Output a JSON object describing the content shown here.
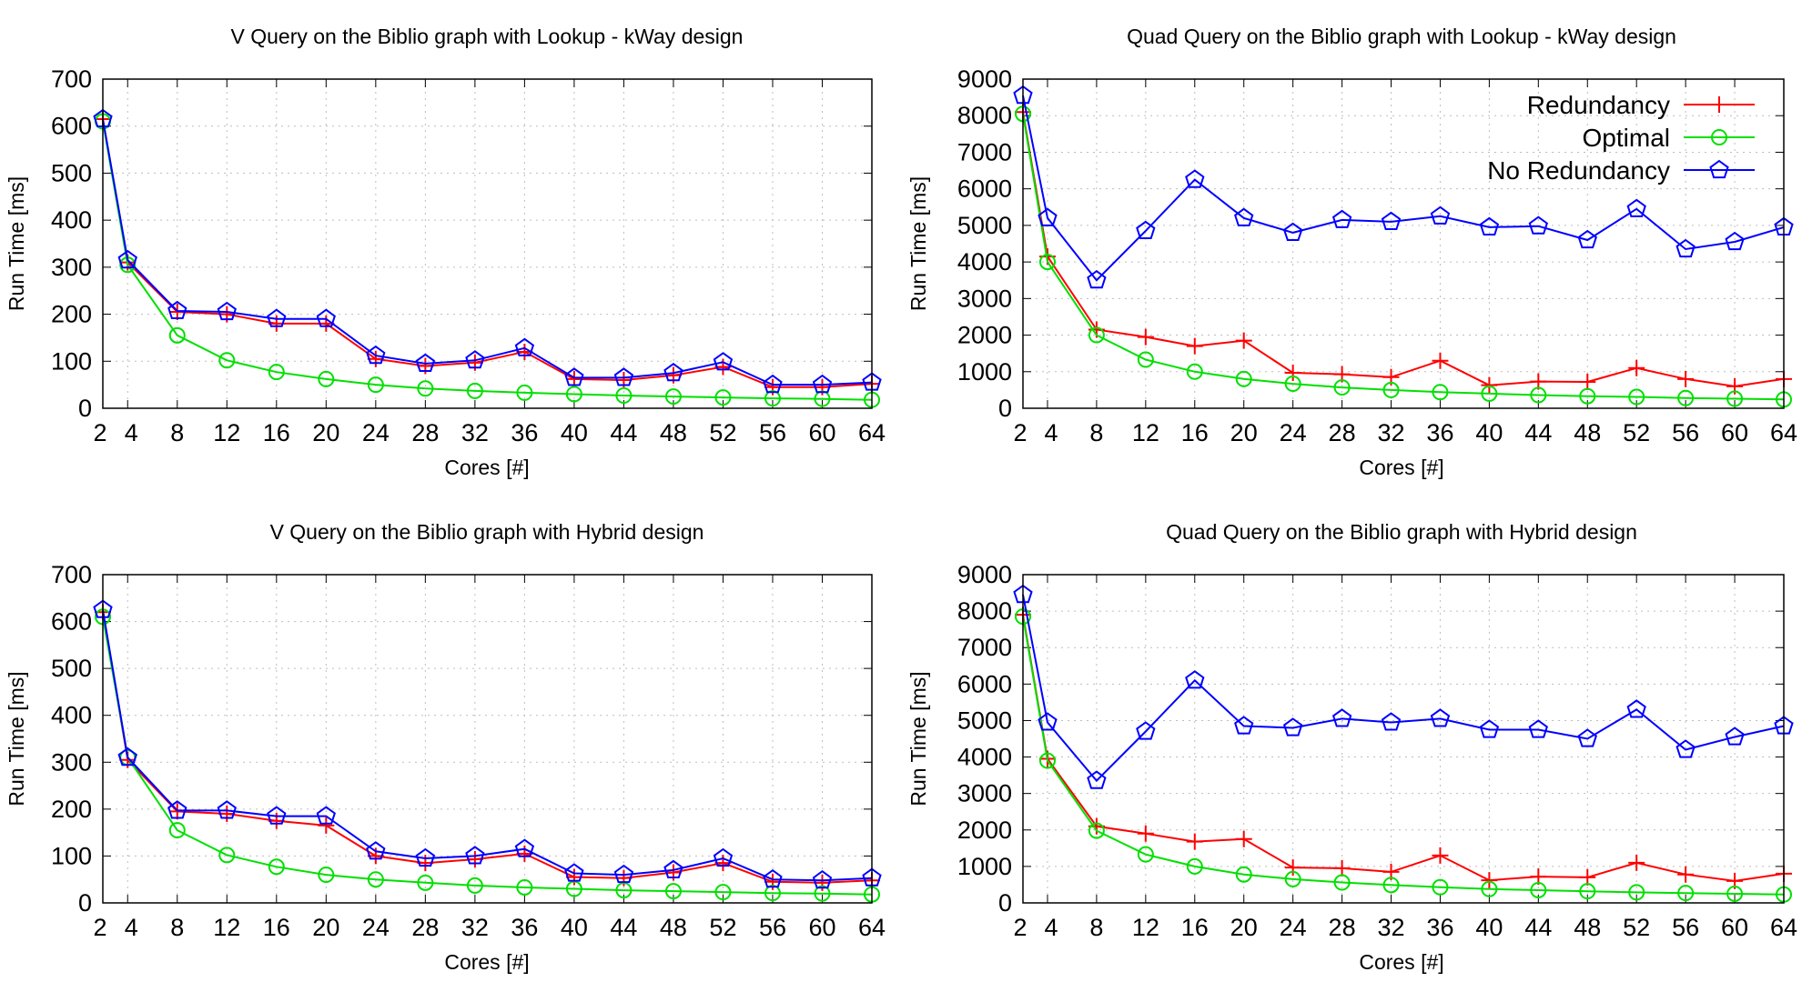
{
  "figure": {
    "series_styles": {
      "Redundancy": {
        "color": "#ff0000",
        "marker": "plus"
      },
      "Optimal": {
        "color": "#00e000",
        "marker": "circle"
      },
      "No Redundancy": {
        "color": "#0000ff",
        "marker": "pentagon"
      }
    },
    "legend": [
      "Redundancy",
      "Optimal",
      "No Redundancy"
    ]
  },
  "chart_data": [
    {
      "type": "line",
      "title": "V Query on the Biblio graph with Lookup - kWay design",
      "xlabel": "Cores [#]",
      "ylabel": "Run Time [ms]",
      "x": [
        2,
        4,
        8,
        12,
        16,
        20,
        24,
        28,
        32,
        36,
        40,
        44,
        48,
        52,
        56,
        60,
        64
      ],
      "xlim": [
        2,
        64
      ],
      "ylim": [
        0,
        700
      ],
      "xticks": [
        2,
        4,
        8,
        12,
        16,
        20,
        24,
        28,
        32,
        36,
        40,
        44,
        48,
        52,
        56,
        60,
        64
      ],
      "yticks": [
        0,
        100,
        200,
        300,
        400,
        500,
        600,
        700
      ],
      "grid": true,
      "legend": "none",
      "series": [
        {
          "name": "Redundancy",
          "values": [
            615,
            310,
            205,
            200,
            180,
            180,
            105,
            90,
            97,
            120,
            62,
            60,
            70,
            88,
            45,
            45,
            52
          ]
        },
        {
          "name": "Optimal",
          "values": [
            610,
            305,
            155,
            102,
            77,
            62,
            50,
            42,
            37,
            33,
            30,
            27,
            25,
            23,
            21,
            20,
            18
          ]
        },
        {
          "name": "No Redundancy",
          "values": [
            615,
            315,
            207,
            205,
            190,
            190,
            112,
            95,
            102,
            128,
            65,
            65,
            75,
            98,
            50,
            50,
            55
          ]
        }
      ]
    },
    {
      "type": "line",
      "title": "Quad Query on the Biblio graph with Lookup - kWay design",
      "xlabel": "Cores [#]",
      "ylabel": "Run Time [ms]",
      "x": [
        2,
        4,
        8,
        12,
        16,
        20,
        24,
        28,
        32,
        36,
        40,
        44,
        48,
        52,
        56,
        60,
        64
      ],
      "xlim": [
        2,
        64
      ],
      "ylim": [
        0,
        9000
      ],
      "xticks": [
        2,
        4,
        8,
        12,
        16,
        20,
        24,
        28,
        32,
        36,
        40,
        44,
        48,
        52,
        56,
        60,
        64
      ],
      "yticks": [
        0,
        1000,
        2000,
        3000,
        4000,
        5000,
        6000,
        7000,
        8000,
        9000
      ],
      "grid": true,
      "legend": "top-right",
      "series": [
        {
          "name": "Redundancy",
          "values": [
            8100,
            4150,
            2150,
            1950,
            1700,
            1850,
            970,
            930,
            850,
            1300,
            630,
            730,
            720,
            1100,
            800,
            600,
            800
          ]
        },
        {
          "name": "Optimal",
          "values": [
            8050,
            4000,
            2000,
            1330,
            1000,
            800,
            670,
            570,
            500,
            440,
            400,
            360,
            330,
            310,
            280,
            260,
            240
          ]
        },
        {
          "name": "No Redundancy",
          "values": [
            8550,
            5200,
            3500,
            4850,
            6250,
            5200,
            4800,
            5150,
            5100,
            5250,
            4950,
            4980,
            4600,
            5450,
            4350,
            4550,
            4950
          ]
        }
      ]
    },
    {
      "type": "line",
      "title": "V Query on the Biblio graph with Hybrid design",
      "xlabel": "Cores [#]",
      "ylabel": "Run Time [ms]",
      "x": [
        2,
        4,
        8,
        12,
        16,
        20,
        24,
        28,
        32,
        36,
        40,
        44,
        48,
        52,
        56,
        60,
        64
      ],
      "xlim": [
        2,
        64
      ],
      "ylim": [
        0,
        700
      ],
      "xticks": [
        2,
        4,
        8,
        12,
        16,
        20,
        24,
        28,
        32,
        36,
        40,
        44,
        48,
        52,
        56,
        60,
        64
      ],
      "yticks": [
        0,
        100,
        200,
        300,
        400,
        500,
        600,
        700
      ],
      "grid": true,
      "legend": "none",
      "series": [
        {
          "name": "Redundancy",
          "values": [
            620,
            305,
            195,
            190,
            175,
            165,
            100,
            85,
            93,
            105,
            55,
            53,
            65,
            85,
            45,
            43,
            48
          ]
        },
        {
          "name": "Optimal",
          "values": [
            610,
            310,
            155,
            102,
            77,
            60,
            50,
            43,
            37,
            33,
            30,
            27,
            25,
            23,
            21,
            20,
            18
          ]
        },
        {
          "name": "No Redundancy",
          "values": [
            625,
            310,
            197,
            197,
            185,
            185,
            110,
            95,
            100,
            115,
            63,
            60,
            70,
            95,
            50,
            48,
            53
          ]
        }
      ]
    },
    {
      "type": "line",
      "title": "Quad Query on the Biblio graph with Hybrid design",
      "xlabel": "Cores [#]",
      "ylabel": "Run Time [ms]",
      "x": [
        2,
        4,
        8,
        12,
        16,
        20,
        24,
        28,
        32,
        36,
        40,
        44,
        48,
        52,
        56,
        60,
        64
      ],
      "xlim": [
        2,
        64
      ],
      "ylim": [
        0,
        9000
      ],
      "xticks": [
        2,
        4,
        8,
        12,
        16,
        20,
        24,
        28,
        32,
        36,
        40,
        44,
        48,
        52,
        56,
        60,
        64
      ],
      "yticks": [
        0,
        1000,
        2000,
        3000,
        4000,
        5000,
        6000,
        7000,
        8000,
        9000
      ],
      "grid": true,
      "legend": "none",
      "series": [
        {
          "name": "Redundancy",
          "values": [
            7900,
            3950,
            2100,
            1900,
            1680,
            1750,
            970,
            950,
            850,
            1300,
            620,
            720,
            700,
            1100,
            780,
            600,
            800
          ]
        },
        {
          "name": "Optimal",
          "values": [
            7850,
            3900,
            1980,
            1330,
            1000,
            780,
            650,
            560,
            490,
            430,
            380,
            350,
            320,
            290,
            270,
            250,
            230
          ]
        },
        {
          "name": "No Redundancy",
          "values": [
            8450,
            4950,
            3350,
            4700,
            6100,
            4850,
            4800,
            5050,
            4950,
            5050,
            4750,
            4750,
            4500,
            5300,
            4200,
            4550,
            4850
          ]
        }
      ]
    }
  ]
}
